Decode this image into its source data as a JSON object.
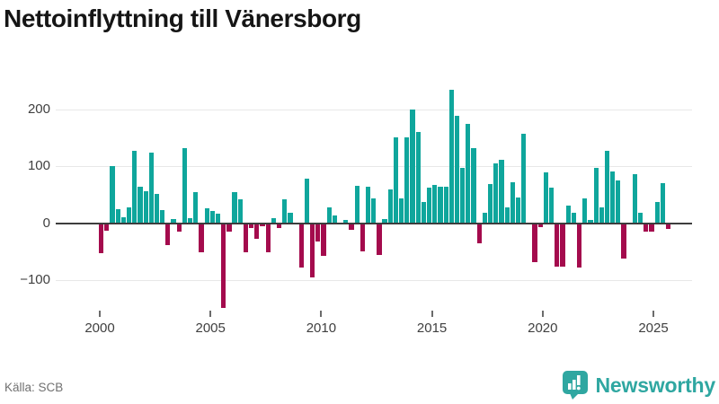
{
  "title": "Nettoinflyttning till Vänersborg",
  "source": "Källa: SCB",
  "brand": {
    "name": "Newsworthy",
    "icon": "bar-chart-speech-bubble-icon",
    "color": "#2fa7a1"
  },
  "chart_data": {
    "type": "bar",
    "title": "Nettoinflyttning till Vänersborg",
    "xlabel": "",
    "ylabel": "",
    "x_unit": "quarter",
    "start_year": 2000,
    "start_quarter": 1,
    "quarters_per_year": 4,
    "x_tick_years": [
      2000,
      2005,
      2010,
      2015,
      2020,
      2025
    ],
    "x_tick_labels": [
      "2000",
      "2005",
      "2010",
      "2015",
      "2020",
      "2025"
    ],
    "y_ticks": [
      -100,
      0,
      100,
      200
    ],
    "y_tick_labels": [
      "−100",
      "0",
      "100",
      "200"
    ],
    "ylim": [
      -160,
      245
    ],
    "grid": "horizontal",
    "legend": "none",
    "colors": {
      "positive": "#0fa69c",
      "negative": "#a40b4d",
      "axis": "#3d3d3d",
      "gridline": "#e8e8e8"
    },
    "values": [
      -53,
      -13,
      100,
      25,
      10,
      27,
      127,
      64,
      57,
      124,
      52,
      23,
      -38,
      7,
      -15,
      132,
      9,
      54,
      -51,
      26,
      21,
      16,
      -150,
      -15,
      54,
      42,
      -52,
      -9,
      -28,
      -6,
      -51,
      9,
      -9,
      42,
      18,
      0,
      -79,
      78,
      -96,
      -32,
      -58,
      28,
      14,
      0,
      6,
      -12,
      66,
      -50,
      65,
      44,
      -56,
      7,
      60,
      152,
      43,
      152,
      200,
      161,
      37,
      62,
      67,
      64,
      64,
      235,
      189,
      97,
      175,
      132,
      -36,
      18,
      69,
      106,
      112,
      28,
      72,
      46,
      157,
      0,
      -69,
      -7,
      89,
      62,
      -77,
      -77,
      31,
      18,
      -78,
      43,
      6,
      97,
      28,
      128,
      91,
      75,
      -62,
      0,
      86,
      18,
      -15,
      -15,
      38,
      70,
      -10
    ]
  }
}
